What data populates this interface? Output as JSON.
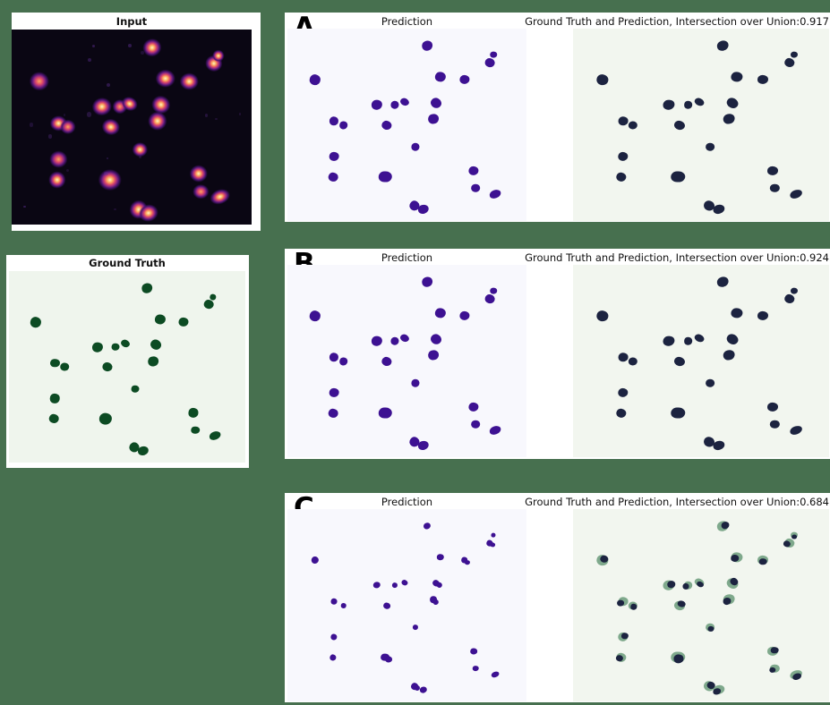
{
  "colors": {
    "page_bg": "#47704F",
    "card_bg": "#FFFFFF",
    "title_text": "#111111",
    "input_bg": "#0A0613",
    "gt_panel_bg": "#EFF5ED",
    "gt_blob": "#0C4B23",
    "pred_panel_bg": "#F8F8FD",
    "pred_blob": "#3D1192",
    "overlay_panel_bg": "#F2F6EF",
    "overlay_pred_blob": "#1C2340",
    "overlay_gt_blob": "#7FA98C",
    "input_glow": [
      "#FDF7C4",
      "#FDA95C",
      "#D9466B",
      "#8C2981",
      "#49136E"
    ]
  },
  "left_column": {
    "input": {
      "title": "Input"
    },
    "ground_truth": {
      "title": "Ground Truth"
    }
  },
  "rows": [
    {
      "label": "A",
      "pred_title": "Prediction",
      "overlay_title": "Ground Truth and Prediction, Intersection over Union:0.917",
      "iou": "0.917",
      "pred_scale": 1.0,
      "split": false
    },
    {
      "label": "B",
      "pred_title": "Prediction",
      "overlay_title": "Ground Truth and Prediction, Intersection over Union:0.924",
      "iou": "0.924",
      "pred_scale": 1.0,
      "split": false
    },
    {
      "label": "C",
      "pred_title": "Prediction",
      "overlay_title": "Ground Truth and Prediction, Intersection over Union:0.684",
      "iou": "0.684",
      "pred_scale": 0.68,
      "split": true
    }
  ],
  "blobs": [
    [
      58.5,
      9.0,
      4.4,
      5.0,
      -20
    ],
    [
      84.5,
      17.5,
      4.0,
      4.6,
      15
    ],
    [
      86.2,
      13.5,
      2.8,
      3.2,
      0
    ],
    [
      11.5,
      26.5,
      4.6,
      5.4,
      10
    ],
    [
      64.0,
      25.0,
      4.6,
      5.2,
      0
    ],
    [
      74.0,
      26.5,
      4.2,
      4.8,
      0
    ],
    [
      37.5,
      39.5,
      4.6,
      5.0,
      -10
    ],
    [
      45.0,
      39.5,
      3.4,
      4.0,
      0
    ],
    [
      49.2,
      38.0,
      3.8,
      3.8,
      25
    ],
    [
      62.3,
      38.5,
      4.4,
      5.0,
      30
    ],
    [
      19.5,
      48.0,
      3.8,
      4.4,
      0
    ],
    [
      23.5,
      50.0,
      3.6,
      4.2,
      0
    ],
    [
      41.5,
      50.0,
      4.2,
      4.6,
      15
    ],
    [
      61.0,
      47.0,
      4.4,
      5.2,
      -15
    ],
    [
      53.5,
      61.5,
      3.4,
      4.0,
      0
    ],
    [
      19.5,
      66.5,
      4.0,
      4.8,
      0
    ],
    [
      19.0,
      77.0,
      4.0,
      4.8,
      10
    ],
    [
      41.0,
      77.0,
      5.4,
      6.0,
      0
    ],
    [
      78.0,
      74.0,
      4.2,
      4.8,
      0
    ],
    [
      78.8,
      83.0,
      3.6,
      4.0,
      0
    ],
    [
      87.0,
      86.0,
      4.8,
      4.2,
      -20
    ],
    [
      53.0,
      92.0,
      4.2,
      5.2,
      20
    ],
    [
      57.0,
      94.0,
      4.6,
      4.8,
      -15
    ]
  ]
}
